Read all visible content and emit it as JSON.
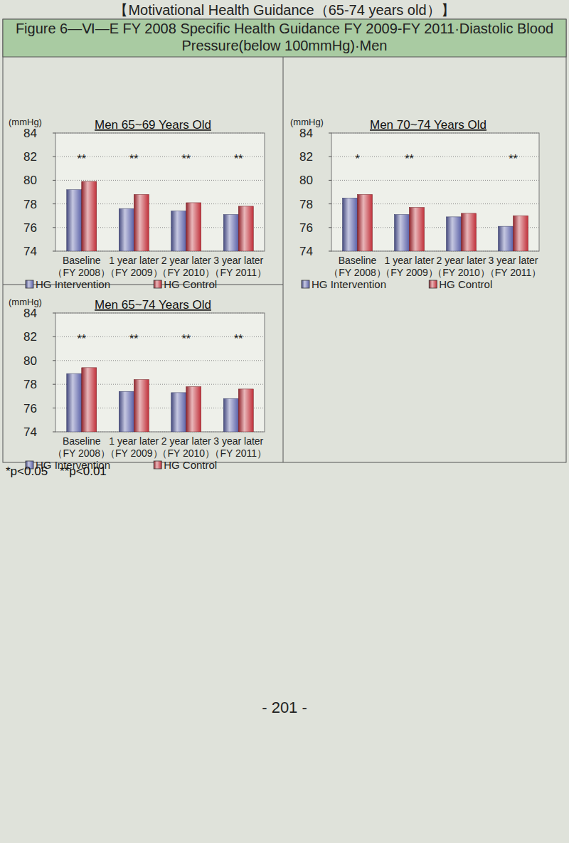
{
  "page": {
    "header": "【Motivational Health Guidance（65-74 years old）】",
    "figure_title": "Figure 6—Ⅵ—E FY 2008 Specific Health Guidance FY 2009-FY 2011·Diastolic Blood Pressure(below 100mmHg)·Men",
    "footnote": "*p<0.05　**p<0.01",
    "page_number": "- 201 -"
  },
  "chart_data": [
    {
      "type": "bar",
      "title": "Men 65~69 Years Old",
      "y_label": "(mmHg)",
      "categories": [
        "Baseline\n（FY 2008）",
        "1 year later\n（FY 2009）",
        "2 year later\n（FY 2010）",
        "3 year later\n（FY 2011）"
      ],
      "series": [
        {
          "name": "HG Intervention",
          "color": "#5c62a8",
          "values": [
            79.2,
            77.6,
            77.4,
            77.1
          ]
        },
        {
          "name": "HG Control",
          "color": "#c0303a",
          "values": [
            79.9,
            78.8,
            78.1,
            77.8
          ]
        }
      ],
      "annotations": [
        "**",
        "**",
        "**",
        "**"
      ],
      "ylim": [
        74,
        84
      ],
      "yticks": [
        74,
        76,
        78,
        80,
        82,
        84
      ],
      "grid": true,
      "legend": "bottom"
    },
    {
      "type": "bar",
      "title": "Men 70~74 Years Old",
      "y_label": "(mmHg)",
      "categories": [
        "Baseline\n（FY 2008）",
        "1 year later\n（FY 2009）",
        "2 year later\n（FY 2010）",
        "3 year later\n（FY 2011）"
      ],
      "series": [
        {
          "name": "HG Intervention",
          "color": "#5c62a8",
          "values": [
            78.5,
            77.1,
            76.9,
            76.1
          ]
        },
        {
          "name": "HG Control",
          "color": "#c0303a",
          "values": [
            78.8,
            77.7,
            77.2,
            77.0
          ]
        }
      ],
      "annotations": [
        "*",
        "**",
        null,
        "**"
      ],
      "ylim": [
        74,
        84
      ],
      "yticks": [
        74,
        76,
        78,
        80,
        82,
        84
      ],
      "grid": true,
      "legend": "bottom"
    },
    {
      "type": "bar",
      "title": "Men 65~74 Years Old",
      "y_label": "(mmHg)",
      "categories": [
        "Baseline\n（FY 2008）",
        "1 year later\n（FY 2009）",
        "2 year later\n（FY 2010）",
        "3 year later\n（FY 2011）"
      ],
      "series": [
        {
          "name": "HG Intervention",
          "color": "#5c62a8",
          "values": [
            78.9,
            77.4,
            77.3,
            76.8
          ]
        },
        {
          "name": "HG Control",
          "color": "#c0303a",
          "values": [
            79.4,
            78.4,
            77.8,
            77.6
          ]
        }
      ],
      "annotations": [
        "**",
        "**",
        "**",
        "**"
      ],
      "ylim": [
        74,
        84
      ],
      "yticks": [
        74,
        76,
        78,
        80,
        82,
        84
      ],
      "grid": true,
      "legend": "bottom"
    }
  ]
}
